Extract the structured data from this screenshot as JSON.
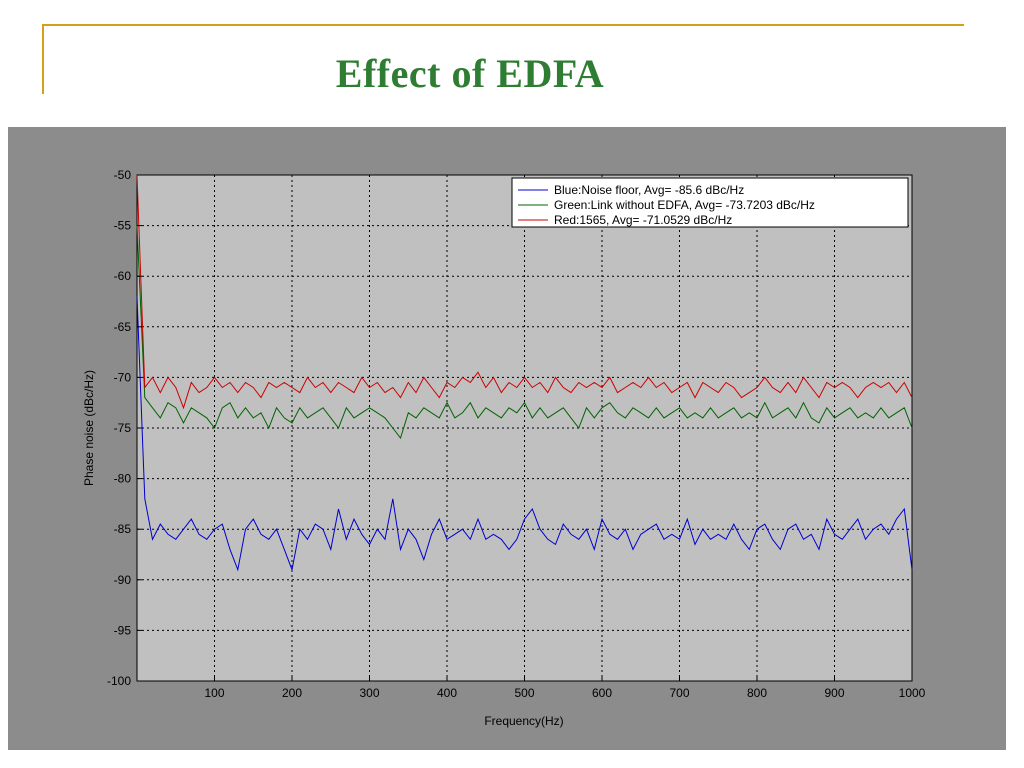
{
  "slide": {
    "title": "Effect of  EDFA",
    "accent_color": "#d4a017",
    "title_color": "#2e7d32"
  },
  "chart_data": {
    "type": "line",
    "xlabel": "Frequency(Hz)",
    "ylabel": "Phase noise (dBc/Hz)",
    "xlim": [
      0,
      1000
    ],
    "ylim": [
      -100,
      -50
    ],
    "xticks": [
      100,
      200,
      300,
      400,
      500,
      600,
      700,
      800,
      900,
      1000
    ],
    "yticks": [
      -50,
      -55,
      -60,
      -65,
      -70,
      -75,
      -80,
      -85,
      -90,
      -95,
      -100
    ],
    "grid": true,
    "legend_position": "top-right",
    "x": [
      0,
      10,
      20,
      30,
      40,
      50,
      60,
      70,
      80,
      90,
      100,
      110,
      120,
      130,
      140,
      150,
      160,
      170,
      180,
      190,
      200,
      210,
      220,
      230,
      240,
      250,
      260,
      270,
      280,
      290,
      300,
      310,
      320,
      330,
      340,
      350,
      360,
      370,
      380,
      390,
      400,
      410,
      420,
      430,
      440,
      450,
      460,
      470,
      480,
      490,
      500,
      510,
      520,
      530,
      540,
      550,
      560,
      570,
      580,
      590,
      600,
      610,
      620,
      630,
      640,
      650,
      660,
      670,
      680,
      690,
      700,
      710,
      720,
      730,
      740,
      750,
      760,
      770,
      780,
      790,
      800,
      810,
      820,
      830,
      840,
      850,
      860,
      870,
      880,
      890,
      900,
      910,
      920,
      930,
      940,
      950,
      960,
      970,
      980,
      990,
      1000
    ],
    "series": [
      {
        "name": "Blue:Noise floor, Avg= -85.6 dBc/Hz",
        "color": "#0000cc",
        "values": [
          -62,
          -82,
          -86,
          -84.5,
          -85.5,
          -86,
          -85,
          -84,
          -85.5,
          -86,
          -85,
          -84.5,
          -87,
          -89,
          -85,
          -84,
          -85.5,
          -86,
          -85,
          -87,
          -89,
          -85,
          -86,
          -84.5,
          -85,
          -87,
          -83,
          -86,
          -84,
          -85.5,
          -86.5,
          -85,
          -86,
          -82,
          -87,
          -85,
          -86,
          -88,
          -85.5,
          -84,
          -86,
          -85.5,
          -85,
          -86,
          -84,
          -86,
          -85.5,
          -86,
          -87,
          -86,
          -84,
          -83,
          -85,
          -86,
          -86.5,
          -84.5,
          -85.5,
          -86,
          -85,
          -87,
          -84,
          -85.5,
          -86,
          -85,
          -87,
          -85.5,
          -85,
          -84.5,
          -86,
          -85.5,
          -86,
          -84,
          -86.5,
          -85,
          -86,
          -85.5,
          -86,
          -84.5,
          -86,
          -87,
          -85,
          -84.5,
          -86,
          -87,
          -85,
          -84.5,
          -86,
          -85.5,
          -87,
          -84,
          -85.5,
          -86,
          -85,
          -84,
          -86,
          -85,
          -84.5,
          -85.5,
          -84,
          -83,
          -89
        ]
      },
      {
        "name": "Green:Link without EDFA, Avg= -73.7203 dBc/Hz",
        "color": "#006400",
        "values": [
          -55,
          -72,
          -73,
          -74,
          -72.5,
          -73,
          -74.5,
          -73,
          -73.5,
          -74,
          -75,
          -73,
          -72.5,
          -74,
          -73,
          -74,
          -73.5,
          -75,
          -73,
          -74,
          -74.5,
          -73,
          -74,
          -73.5,
          -73,
          -74,
          -75,
          -73,
          -74,
          -73.5,
          -73,
          -73.5,
          -74,
          -75,
          -76,
          -73.5,
          -74,
          -73,
          -73.5,
          -74,
          -72.5,
          -74,
          -73.5,
          -72.5,
          -74,
          -73,
          -73.5,
          -74,
          -73,
          -73.5,
          -72.5,
          -74,
          -73,
          -74,
          -73.5,
          -73,
          -74,
          -75,
          -73,
          -74,
          -73,
          -72.5,
          -73.5,
          -74,
          -73,
          -73.5,
          -74,
          -73,
          -74,
          -73.5,
          -73,
          -74,
          -73.5,
          -74,
          -73,
          -74,
          -73.5,
          -73,
          -74,
          -73.5,
          -74,
          -72.5,
          -74,
          -73.5,
          -73,
          -74,
          -72.5,
          -74,
          -74.5,
          -73,
          -74,
          -73.5,
          -73,
          -74,
          -73.5,
          -74,
          -73,
          -74,
          -73.5,
          -73,
          -75
        ]
      },
      {
        "name": "Red:1565, Avg= -71.0529 dBc/Hz",
        "color": "#cc0000",
        "values": [
          -50,
          -71,
          -70,
          -71.5,
          -70,
          -71,
          -73,
          -70.5,
          -71.5,
          -71,
          -70,
          -71,
          -70.5,
          -71.5,
          -70.5,
          -71,
          -72,
          -70.5,
          -71,
          -70.5,
          -71,
          -71.5,
          -70,
          -71,
          -70.5,
          -71.5,
          -70.5,
          -71,
          -71.5,
          -70,
          -71,
          -70.5,
          -71.5,
          -71,
          -72,
          -70.5,
          -71.5,
          -70,
          -71,
          -72,
          -70.5,
          -71,
          -70,
          -70.5,
          -69.5,
          -71,
          -70,
          -71.5,
          -70.5,
          -71,
          -70,
          -71,
          -70.5,
          -71.5,
          -70,
          -71,
          -71.5,
          -70.5,
          -71,
          -70.5,
          -71,
          -70,
          -71.5,
          -71,
          -70.5,
          -71,
          -70,
          -71,
          -70.5,
          -71.5,
          -71,
          -70.5,
          -72,
          -70.5,
          -71,
          -71.5,
          -70.5,
          -71,
          -72,
          -71.5,
          -71,
          -70,
          -71,
          -71.5,
          -70.5,
          -71.5,
          -70,
          -71,
          -72,
          -70.5,
          -71,
          -70.5,
          -71,
          -72,
          -71,
          -70.5,
          -71,
          -70.5,
          -71.5,
          -70.5,
          -72
        ]
      }
    ]
  }
}
